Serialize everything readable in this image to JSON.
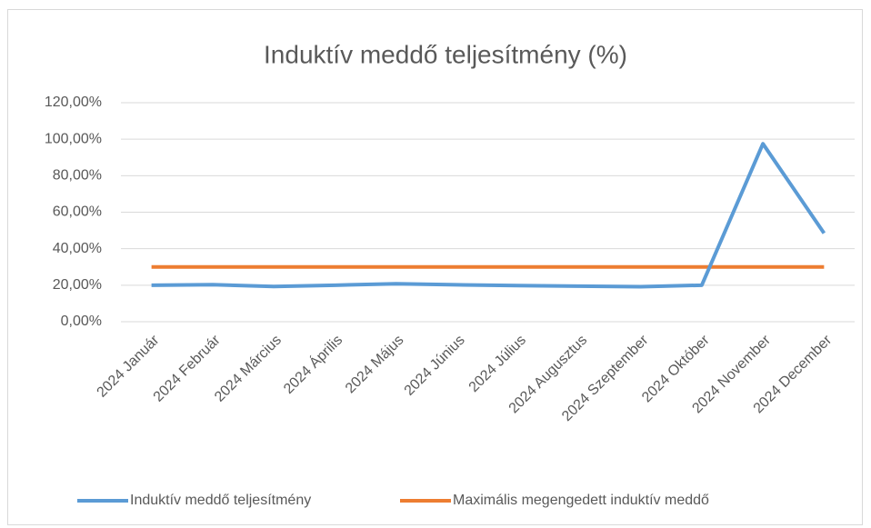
{
  "chart_data": {
    "type": "line",
    "title": "Induktív meddő teljesítmény (%)",
    "categories": [
      "2024 Január",
      "2024 Február",
      "2024 Március",
      "2024 Április",
      "2024 Május",
      "2024 Június",
      "2024 Július",
      "2024 Augusztus",
      "2024 Szeptember",
      "2024 Október",
      "2024 November",
      "2024 December"
    ],
    "series": [
      {
        "name": "Induktív meddő teljesítmény",
        "color": "#5b9bd5",
        "values": [
          20,
          20.3,
          19.3,
          20,
          20.8,
          20.2,
          19.8,
          19.5,
          19.2,
          20,
          97.5,
          48.5
        ]
      },
      {
        "name": "Maximális megengedett induktív meddő",
        "color": "#ed7d31",
        "values": [
          30,
          30,
          30,
          30,
          30,
          30,
          30,
          30,
          30,
          30,
          30,
          30
        ]
      }
    ],
    "ylim": [
      0,
      120
    ],
    "yticks": [
      {
        "value": 0,
        "label": "0,00%"
      },
      {
        "value": 20,
        "label": "20,00%"
      },
      {
        "value": 40,
        "label": "40,00%"
      },
      {
        "value": 60,
        "label": "60,00%"
      },
      {
        "value": 80,
        "label": "80,00%"
      },
      {
        "value": 100,
        "label": "100,00%"
      },
      {
        "value": 120,
        "label": "120,00%"
      }
    ],
    "grid": true,
    "legend": "bottom"
  }
}
